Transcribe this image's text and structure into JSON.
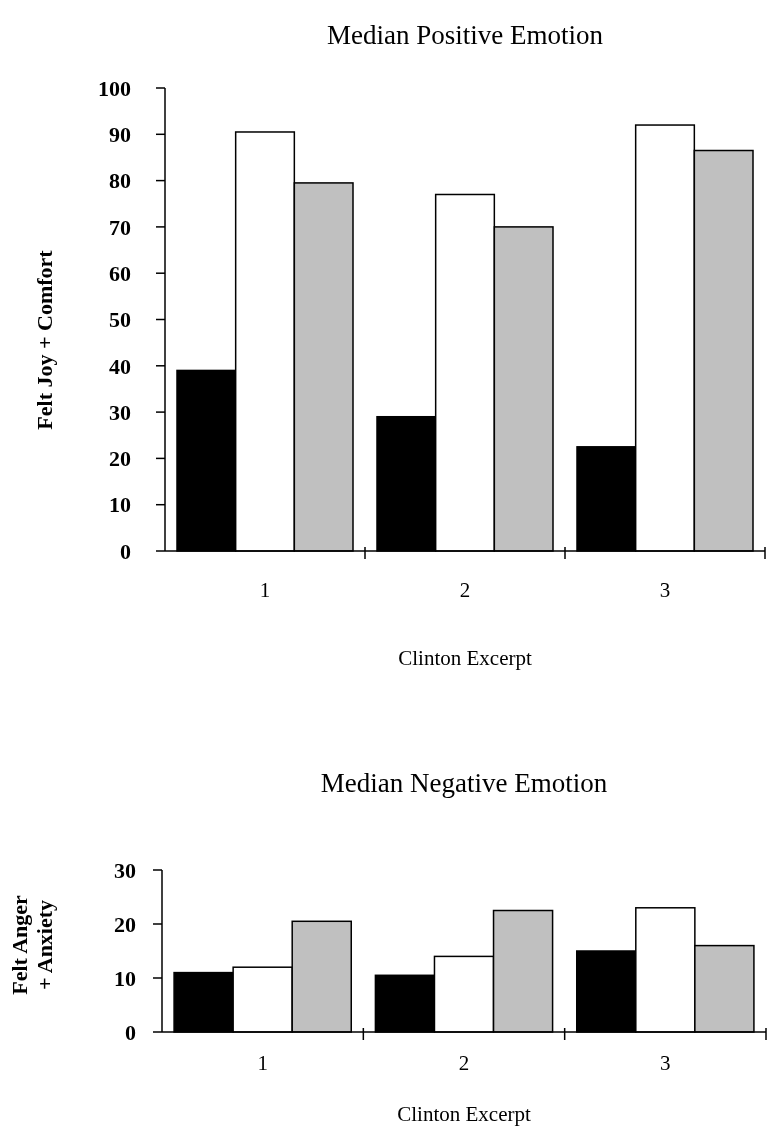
{
  "chart_data": [
    {
      "type": "bar",
      "title": "Median Positive Emotion",
      "xlabel": "Clinton Excerpt",
      "ylabel": "Felt Joy + Comfort",
      "categories": [
        "1",
        "2",
        "3"
      ],
      "series": [
        {
          "color": "#000000",
          "values": [
            39,
            29,
            22.5
          ]
        },
        {
          "color": "#ffffff",
          "values": [
            90.5,
            77,
            92
          ]
        },
        {
          "color": "#c0c0c0",
          "values": [
            79.5,
            70,
            86.5
          ]
        }
      ],
      "ylim": [
        0,
        100
      ],
      "yticks": [
        0,
        10,
        20,
        30,
        40,
        50,
        60,
        70,
        80,
        90,
        100
      ]
    },
    {
      "type": "bar",
      "title": "Median Negative Emotion",
      "xlabel": "Clinton Excerpt",
      "ylabel": "Felt Anger + Anxiety",
      "categories": [
        "1",
        "2",
        "3"
      ],
      "series": [
        {
          "color": "#000000",
          "values": [
            11,
            10.5,
            15
          ]
        },
        {
          "color": "#ffffff",
          "values": [
            12,
            14,
            23
          ]
        },
        {
          "color": "#c0c0c0",
          "values": [
            20.5,
            22.5,
            16
          ]
        }
      ],
      "ylim": [
        0,
        30
      ],
      "yticks": [
        0,
        10,
        20,
        30
      ]
    }
  ]
}
